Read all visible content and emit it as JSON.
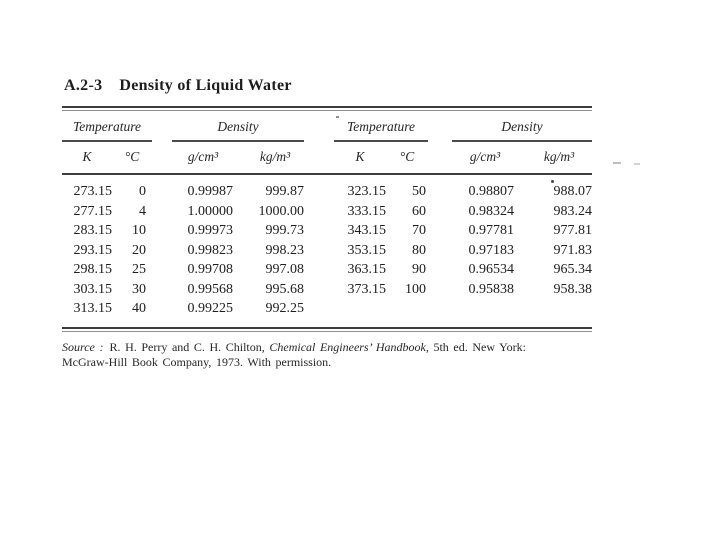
{
  "colors": {
    "paper": "#ffffff",
    "ink": "#232323",
    "rule": "#3d3d3d"
  },
  "page": {
    "title_number": "A.2-3",
    "title_text": "Density of Liquid Water"
  },
  "table": {
    "group_headers": {
      "temperature": "Temperature",
      "density": "Density"
    },
    "col_headers": {
      "k": "K",
      "c": "°C",
      "gcm3": "g/cm³",
      "kgm3": "kg/m³"
    },
    "left_rows": [
      [
        "273.15",
        "0",
        "0.99987",
        "999.87"
      ],
      [
        "277.15",
        "4",
        "1.00000",
        "1000.00"
      ],
      [
        "283.15",
        "10",
        "0.99973",
        "999.73"
      ],
      [
        "293.15",
        "20",
        "0.99823",
        "998.23"
      ],
      [
        "298.15",
        "25",
        "0.99708",
        "997.08"
      ],
      [
        "303.15",
        "30",
        "0.99568",
        "995.68"
      ],
      [
        "313.15",
        "40",
        "0.99225",
        "992.25"
      ]
    ],
    "right_rows": [
      [
        "323.15",
        "50",
        "0.98807",
        "988.07"
      ],
      [
        "333.15",
        "60",
        "0.98324",
        "983.24"
      ],
      [
        "343.15",
        "70",
        "0.97781",
        "977.81"
      ],
      [
        "353.15",
        "80",
        "0.97183",
        "971.83"
      ],
      [
        "363.15",
        "90",
        "0.96534",
        "965.34"
      ],
      [
        "373.15",
        "100",
        "0.95838",
        "958.38"
      ]
    ]
  },
  "source": {
    "label": "Source :",
    "part1": "R. H. Perry and C. H. Chilton, ",
    "book": "Chemical Engineers’ Handbook",
    "part2": ", 5th ed. New York:",
    "part3": "McGraw-Hill Book Company, 1973. With permission."
  }
}
